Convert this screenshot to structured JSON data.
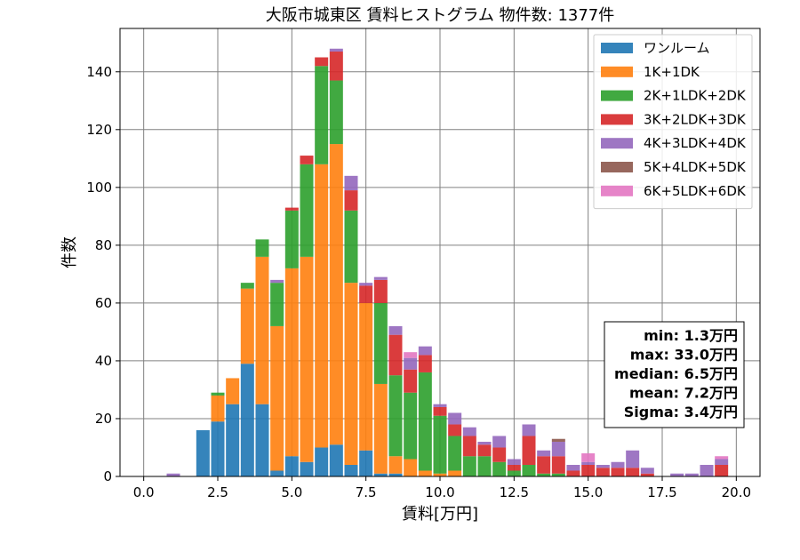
{
  "chart_data": {
    "type": "bar",
    "stacked": true,
    "title": "大阪市城東区 賃料ヒストグラム 物件数: 1377件",
    "xlabel": "賃料[万円]",
    "ylabel": "件数",
    "xlim": [
      -0.8,
      20.8
    ],
    "ylim": [
      0,
      155
    ],
    "bin_width": 0.5,
    "grid": true,
    "legend_position": "top-right",
    "xticks": [
      "0.0",
      "2.5",
      "5.0",
      "7.5",
      "10.0",
      "12.5",
      "15.0",
      "17.5",
      "20.0"
    ],
    "yticks": [
      "0",
      "20",
      "40",
      "60",
      "80",
      "100",
      "120",
      "140"
    ],
    "x": [
      1.0,
      2.0,
      2.5,
      3.0,
      3.5,
      4.0,
      4.5,
      5.0,
      5.5,
      6.0,
      6.5,
      7.0,
      7.5,
      8.0,
      8.5,
      9.0,
      9.5,
      10.0,
      10.5,
      11.0,
      11.5,
      12.0,
      12.5,
      13.0,
      13.5,
      14.0,
      14.5,
      15.0,
      15.5,
      16.0,
      16.5,
      17.0,
      18.0,
      18.5,
      19.0,
      19.5
    ],
    "series": [
      {
        "name": "ワンルーム",
        "color": "#1f77b4",
        "values": [
          0,
          16,
          19,
          25,
          39,
          25,
          2,
          7,
          5,
          10,
          11,
          4,
          9,
          1,
          1,
          0,
          0,
          0,
          0,
          0,
          0,
          0,
          0,
          0,
          0,
          0,
          0,
          0,
          0,
          0,
          0,
          0,
          0,
          0,
          0,
          0
        ]
      },
      {
        "name": "1K+1DK",
        "color": "#ff7f0e",
        "values": [
          0,
          0,
          9,
          9,
          26,
          51,
          50,
          65,
          71,
          98,
          104,
          63,
          51,
          31,
          6,
          6,
          2,
          1,
          2,
          0,
          0,
          0,
          0,
          0,
          0,
          0,
          0,
          0,
          0,
          0,
          0,
          0,
          0,
          0,
          0,
          0
        ]
      },
      {
        "name": "2K+1LDK+2DK",
        "color": "#2ca02c",
        "values": [
          0,
          0,
          1,
          0,
          2,
          6,
          15,
          20,
          32,
          34,
          22,
          25,
          0,
          28,
          28,
          23,
          34,
          20,
          12,
          7,
          7,
          5,
          2,
          4,
          1,
          1,
          0,
          0,
          0,
          0,
          0,
          0,
          0,
          0,
          0,
          0
        ]
      },
      {
        "name": "3K+2LDK+3DK",
        "color": "#d62728",
        "values": [
          0,
          0,
          0,
          0,
          0,
          0,
          0,
          1,
          3,
          3,
          10,
          7,
          6,
          8,
          14,
          8,
          6,
          3,
          4,
          7,
          4,
          5,
          2,
          10,
          6,
          6,
          2,
          4,
          3,
          3,
          3,
          1,
          0,
          0,
          0,
          4
        ]
      },
      {
        "name": "4K+3LDK+4DK",
        "color": "#9467bd",
        "values": [
          1,
          0,
          0,
          0,
          0,
          0,
          1,
          0,
          0,
          0,
          1,
          5,
          1,
          1,
          3,
          4,
          3,
          1,
          4,
          3,
          1,
          4,
          2,
          4,
          2,
          5,
          2,
          1,
          1,
          2,
          6,
          2,
          1,
          1,
          4,
          2
        ]
      },
      {
        "name": "5K+4LDK+5DK",
        "color": "#8c564b",
        "values": [
          0,
          0,
          0,
          0,
          0,
          0,
          0,
          0,
          0,
          0,
          0,
          0,
          0,
          0,
          0,
          0,
          0,
          0,
          0,
          0,
          0,
          0,
          0,
          0,
          0,
          1,
          0,
          0,
          0,
          0,
          0,
          0,
          0,
          0,
          0,
          0
        ]
      },
      {
        "name": "6K+5LDK+6DK",
        "color": "#e377c2",
        "values": [
          0,
          0,
          0,
          0,
          0,
          0,
          0,
          0,
          0,
          0,
          0,
          0,
          0,
          0,
          0,
          2,
          0,
          0,
          0,
          0,
          0,
          0,
          0,
          0,
          0,
          0,
          0,
          3,
          0,
          0,
          0,
          0,
          0,
          0,
          0,
          1
        ]
      }
    ],
    "stats": [
      "min: 1.3万円",
      "max: 33.0万円",
      "median: 6.5万円",
      "mean: 7.2万円",
      "Sigma: 3.4万円"
    ]
  }
}
